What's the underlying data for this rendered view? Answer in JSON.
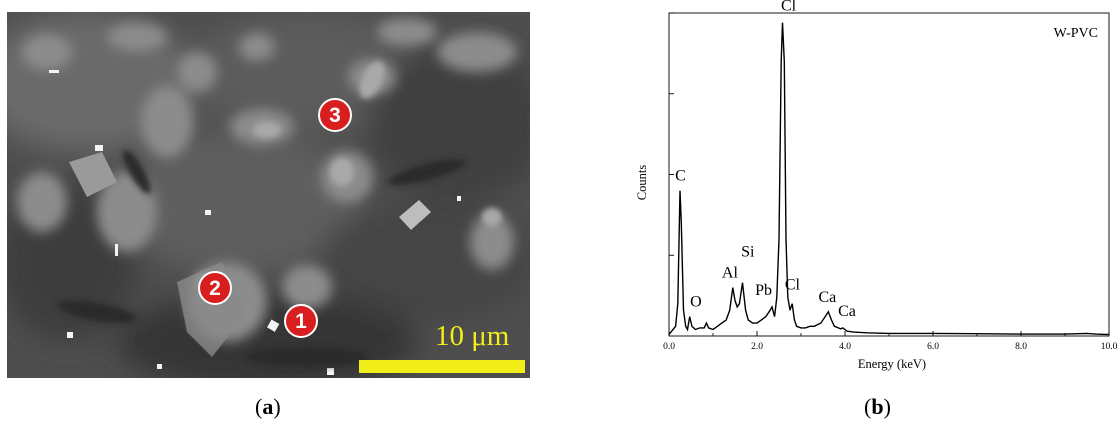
{
  "panel_a": {
    "caption_letter": "a",
    "scale_label": "10 μm",
    "spots": [
      {
        "label": "1"
      },
      {
        "label": "2"
      },
      {
        "label": "3"
      }
    ]
  },
  "panel_b": {
    "caption_letter": "b",
    "chart_data": {
      "type": "line",
      "title": "W-PVC",
      "xlabel": "Energy (keV)",
      "ylabel": "Counts",
      "xlim": [
        0.0,
        10.0
      ],
      "x_ticks": [
        "0.0",
        "2.0",
        "4.0",
        "6.0",
        "8.0",
        "10.0"
      ],
      "ylim": [
        0,
        100
      ],
      "y_ticks_labeled": false,
      "grid": false,
      "series": [
        {
          "x": [
            0.0,
            0.15,
            0.2,
            0.25,
            0.28,
            0.33,
            0.38,
            0.42,
            0.47,
            0.52,
            0.6,
            0.7,
            0.8,
            0.85,
            0.9,
            1.0,
            1.1,
            1.2,
            1.3,
            1.38,
            1.45,
            1.5,
            1.55,
            1.6,
            1.67,
            1.74,
            1.8,
            1.9,
            2.0,
            2.1,
            2.2,
            2.3,
            2.34,
            2.4,
            2.45,
            2.5,
            2.55,
            2.58,
            2.62,
            2.66,
            2.7,
            2.75,
            2.8,
            2.85,
            2.9,
            3.0,
            3.1,
            3.2,
            3.3,
            3.45,
            3.55,
            3.62,
            3.69,
            3.76,
            3.85,
            3.9,
            3.95,
            4.05,
            4.2,
            4.5,
            5.0,
            6.0,
            7.0,
            8.0,
            9.0,
            9.5,
            9.7,
            9.9,
            10.0
          ],
          "y": [
            0.5,
            3,
            10,
            45,
            35,
            8,
            3,
            2,
            6,
            3,
            2,
            2.5,
            2.5,
            4,
            2.5,
            2,
            3,
            4,
            5,
            8,
            15,
            11,
            9,
            10,
            16.5,
            8,
            5,
            4,
            4,
            5,
            6,
            8,
            9,
            6,
            12,
            30,
            85,
            97,
            85,
            30,
            12,
            8,
            10,
            5,
            3,
            2.5,
            2.5,
            3,
            3,
            4,
            6,
            7.5,
            5,
            3,
            2.5,
            2.2,
            2.5,
            1.5,
            1.2,
            1,
            0.8,
            0.8,
            0.7,
            0.6,
            0.6,
            0.8,
            0.6,
            0.5,
            0.5
          ]
        }
      ],
      "annotations": [
        {
          "text": "C",
          "x": 0.26,
          "y": 45
        },
        {
          "text": "O",
          "x": 0.52,
          "y": 6
        },
        {
          "text": "Al",
          "x": 1.43,
          "y": 15
        },
        {
          "text": "Si",
          "x": 1.7,
          "y": 16.5
        },
        {
          "text": "Pb",
          "x": 2.33,
          "y": 9
        },
        {
          "text": "Cl",
          "x": 2.58,
          "y": 97
        },
        {
          "text": "Cl",
          "x": 2.85,
          "y": 10
        },
        {
          "text": "Ca",
          "x": 3.69,
          "y": 7.5
        },
        {
          "text": "Ca",
          "x": 4.0,
          "y": 2.5
        }
      ]
    }
  },
  "colors": {
    "spot_fill": "#d81e1e",
    "scale_bar": "#f2ee18",
    "spectrum_line": "#000000"
  }
}
